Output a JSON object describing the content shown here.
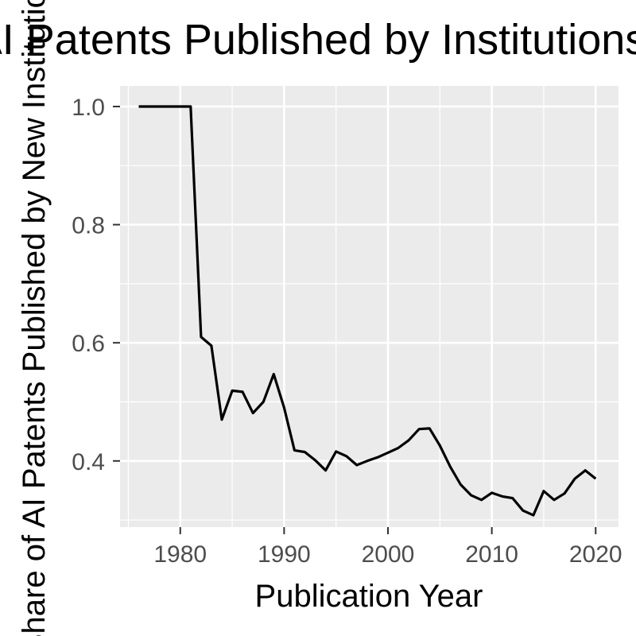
{
  "chart_data": {
    "type": "line",
    "title": "Share of AI Patents Published by Institutions Entering",
    "xlabel": "Publication Year",
    "ylabel": "Share of AI Patents Published by New Institutions",
    "xlim": [
      1974.2,
      2022.2
    ],
    "ylim": [
      0.288,
      1.035
    ],
    "x_ticks": [
      1980,
      1990,
      2000,
      2010,
      2020
    ],
    "x_tick_labels": [
      "1980",
      "1990",
      "2000",
      "2010",
      "2020"
    ],
    "y_ticks": [
      0.4,
      0.6,
      0.8,
      1.0
    ],
    "y_tick_labels": [
      "0.4",
      "0.6",
      "0.8",
      "1.0"
    ],
    "grid": true,
    "colors": {
      "panel": "#ebebeb",
      "grid": "#ffffff",
      "line": "#000000",
      "tick_text": "#4d4d4d"
    },
    "series": [
      {
        "name": "share",
        "x": [
          1976,
          1977,
          1978,
          1979,
          1980,
          1981,
          1982,
          1983,
          1984,
          1985,
          1986,
          1987,
          1988,
          1989,
          1990,
          1991,
          1992,
          1993,
          1994,
          1995,
          1996,
          1997,
          1998,
          1999,
          2000,
          2001,
          2002,
          2003,
          2004,
          2005,
          2006,
          2007,
          2008,
          2009,
          2010,
          2011,
          2012,
          2013,
          2014,
          2015,
          2016,
          2017,
          2018,
          2019,
          2020
        ],
        "values": [
          1.0,
          1.0,
          1.0,
          1.0,
          1.0,
          1.0,
          0.61,
          0.595,
          0.47,
          0.519,
          0.517,
          0.481,
          0.5,
          0.547,
          0.49,
          0.418,
          0.415,
          0.401,
          0.384,
          0.416,
          0.408,
          0.393,
          0.4,
          0.406,
          0.414,
          0.422,
          0.435,
          0.454,
          0.455,
          0.426,
          0.39,
          0.36,
          0.342,
          0.334,
          0.346,
          0.34,
          0.337,
          0.316,
          0.308,
          0.349,
          0.334,
          0.345,
          0.37,
          0.384,
          0.37
        ]
      }
    ]
  }
}
